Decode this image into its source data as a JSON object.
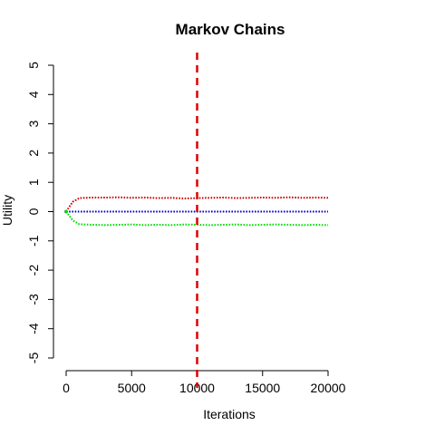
{
  "chart_data": {
    "type": "line",
    "title": "Markov Chains",
    "xlabel": "Iterations",
    "ylabel": "Utility",
    "xlim": [
      0,
      20000
    ],
    "ylim": [
      -5,
      5
    ],
    "x_ticks": [
      0,
      5000,
      10000,
      15000,
      20000
    ],
    "x_tick_labels": [
      "0",
      "5000",
      "10000",
      "15000",
      "20000"
    ],
    "y_ticks": [
      -5,
      -4,
      -3,
      -2,
      -1,
      0,
      1,
      2,
      3,
      4,
      5
    ],
    "y_tick_labels": [
      "-5",
      "-4",
      "-3",
      "-2",
      "-1",
      "0",
      "1",
      "2",
      "3",
      "4",
      "5"
    ],
    "vline": {
      "x": 10000,
      "color": "#dd0000",
      "style": "dashed"
    },
    "series": [
      {
        "name": "upper chain",
        "color": "#cc0000",
        "x": [
          0,
          500,
          1000,
          2000,
          3000,
          4000,
          5000,
          6000,
          7000,
          8000,
          9000,
          10000,
          11000,
          12000,
          13000,
          14000,
          15000,
          16000,
          17000,
          18000,
          19000,
          20000
        ],
        "values": [
          0.0,
          0.33,
          0.46,
          0.48,
          0.48,
          0.49,
          0.47,
          0.48,
          0.46,
          0.47,
          0.45,
          0.46,
          0.47,
          0.48,
          0.46,
          0.47,
          0.48,
          0.47,
          0.49,
          0.47,
          0.48,
          0.47
        ]
      },
      {
        "name": "middle chain",
        "color": "#0000cc",
        "x": [
          0,
          1000,
          2000,
          3000,
          4000,
          5000,
          6000,
          7000,
          8000,
          9000,
          10000,
          11000,
          12000,
          13000,
          14000,
          15000,
          16000,
          17000,
          18000,
          19000,
          20000
        ],
        "values": [
          0,
          0,
          0,
          0,
          0,
          0,
          0,
          0,
          0,
          0,
          0,
          0,
          0,
          0,
          0,
          0,
          0,
          0,
          0,
          0,
          0
        ]
      },
      {
        "name": "lower chain",
        "color": "#00dd00",
        "x": [
          0,
          500,
          1000,
          2000,
          3000,
          4000,
          5000,
          6000,
          7000,
          8000,
          9000,
          10000,
          11000,
          12000,
          13000,
          14000,
          15000,
          16000,
          17000,
          18000,
          19000,
          20000
        ],
        "values": [
          0.0,
          -0.3,
          -0.43,
          -0.45,
          -0.46,
          -0.45,
          -0.44,
          -0.46,
          -0.45,
          -0.46,
          -0.44,
          -0.45,
          -0.46,
          -0.45,
          -0.44,
          -0.46,
          -0.45,
          -0.44,
          -0.45,
          -0.46,
          -0.45,
          -0.46
        ]
      }
    ]
  }
}
